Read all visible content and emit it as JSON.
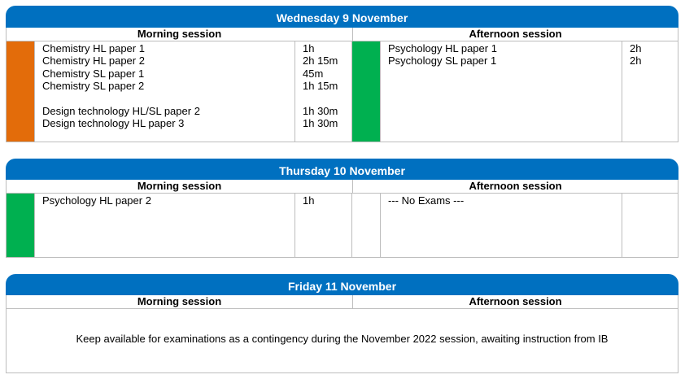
{
  "colors": {
    "header": "#0070c0",
    "orange": "#e36c0a",
    "green": "#00b050"
  },
  "labels": {
    "morning": "Morning session",
    "afternoon": "Afternoon session"
  },
  "days": [
    {
      "title": "Wednesday 9 November",
      "morning": {
        "color": "#e36c0a",
        "exams": [
          {
            "subject": "Chemistry HL paper 1",
            "duration": "1h"
          },
          {
            "subject": "Chemistry HL paper 2",
            "duration": "2h 15m"
          },
          {
            "subject": "Chemistry SL paper 1",
            "duration": "45m"
          },
          {
            "subject": "Chemistry SL paper 2",
            "duration": "1h 15m"
          },
          {
            "subject": "Design technology HL/SL paper 2",
            "duration": "1h 30m"
          },
          {
            "subject": "Design technology HL paper 3",
            "duration": "1h 30m"
          }
        ]
      },
      "afternoon": {
        "color": "#00b050",
        "exams": [
          {
            "subject": "Psychology HL paper 1",
            "duration": "2h"
          },
          {
            "subject": "Psychology SL paper 1",
            "duration": "2h"
          }
        ]
      }
    },
    {
      "title": "Thursday 10 November",
      "morning": {
        "color": "#00b050",
        "exams": [
          {
            "subject": "Psychology HL paper 2",
            "duration": "1h"
          }
        ]
      },
      "afternoon": {
        "text": "--- No Exams ---"
      }
    },
    {
      "title": "Friday 11 November",
      "note": "Keep available for examinations as a contingency during the November 2022 session, awaiting instruction from IB"
    }
  ]
}
